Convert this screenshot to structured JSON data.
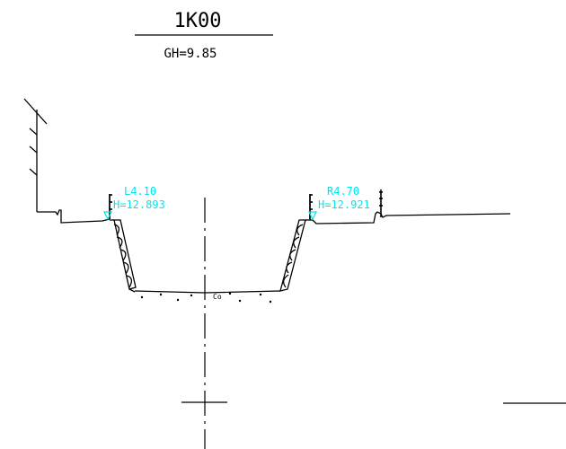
{
  "section": {
    "station": "1K00",
    "ground_height": "GH=9.85"
  },
  "left_bank": {
    "offset": "L4.10",
    "height": "H=12.893"
  },
  "right_bank": {
    "offset": "R4.70",
    "height": "H=12.921"
  },
  "bed_label": "Co",
  "colors": {
    "line": "#000000",
    "annotation": "#00e5ee"
  }
}
